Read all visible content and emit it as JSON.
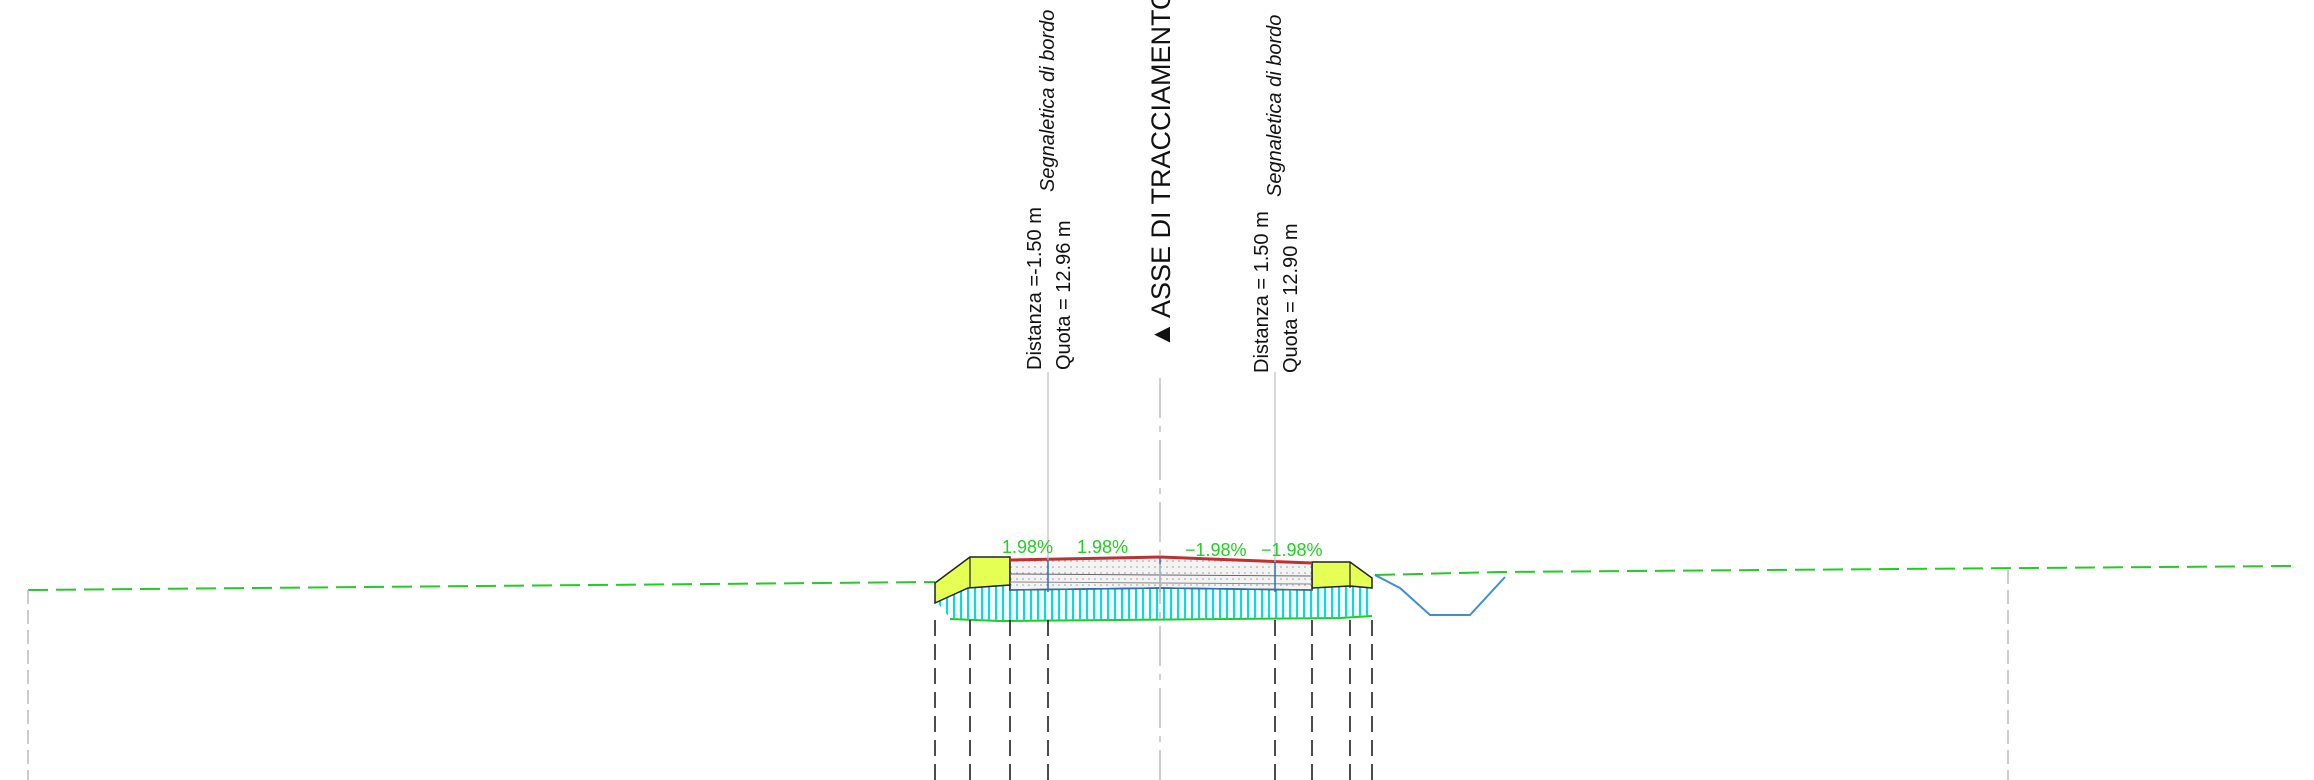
{
  "markers": {
    "left": {
      "distance": "Distanza =-1.50 m",
      "elevation": "Quota = 12.96 m",
      "note": "Segnaletica di bordo"
    },
    "right": {
      "distance": "Distanza = 1.50 m",
      "elevation": "Quota = 12.90 m",
      "note": "Segnaletica di bordo"
    }
  },
  "axis": {
    "symbol": "▲",
    "label": "ASSE DI TRACCIAMENTO"
  },
  "slopes": [
    "1.98%",
    "1.98%",
    "−1.98%",
    "−1.98%"
  ],
  "colors": {
    "ground_line": "#22cc22",
    "verge_fill": "#e6ff55",
    "subgrade_hatch": "#00e0e8",
    "pavement_top": "#c03030",
    "ditch": "#3a8fd8",
    "slope_text": "#22d022"
  }
}
